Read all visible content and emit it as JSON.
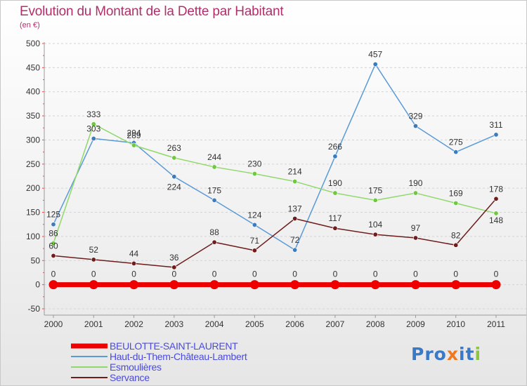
{
  "header": {
    "title": "Evolution du Montant de la Dette par Habitant",
    "subtitle": "(en €)"
  },
  "colors": {
    "title": "#b0306a",
    "axis_text": "#333333",
    "legend_text": "#4a4ae0",
    "grid": "#d4d4d4",
    "background_top": "#ffffff",
    "background_bottom": "#e6e6e6"
  },
  "legend": [
    {
      "label": "BEULOTTE-SAINT-LAURENT",
      "color": "#ee0000"
    },
    {
      "label": "Haut-du-Them-Château-Lambert",
      "color": "#5a9ad6"
    },
    {
      "label": "Esmoulières",
      "color": "#8fd86a"
    },
    {
      "label": "Servance",
      "color": "#6e1c1c"
    }
  ],
  "logo": {
    "text": "Proxiti",
    "letter_colors": [
      "#3a78c8",
      "#3a78c8",
      "#3a78c8",
      "#f07820",
      "#3a78c8",
      "#3a78c8",
      "#8cc63e"
    ]
  },
  "chart_data": {
    "type": "line",
    "title": "Evolution du Montant de la Dette par Habitant",
    "subtitle": "(en €)",
    "x": [
      "2000",
      "2001",
      "2002",
      "2003",
      "2004",
      "2005",
      "2006",
      "2007",
      "2008",
      "2009",
      "2010",
      "2011"
    ],
    "ylim": [
      -50,
      500
    ],
    "yticks": [
      -50,
      0,
      50,
      100,
      150,
      200,
      250,
      300,
      350,
      400,
      450,
      500
    ],
    "grid": "horizontal dashed",
    "legend_position": "bottom-left",
    "series": [
      {
        "name": "BEULOTTE-SAINT-LAURENT",
        "color": "#ee0000",
        "line_width": "thick",
        "values": [
          0,
          0,
          0,
          0,
          0,
          0,
          0,
          0,
          0,
          0,
          0,
          0
        ],
        "labels": [
          "0",
          "0",
          "0",
          "0",
          "0",
          "0",
          "0",
          "0",
          "0",
          "0",
          "0",
          "0"
        ]
      },
      {
        "name": "Haut-du-Them-Château-Lambert",
        "color": "#5a9ad6",
        "point_color": "#3a7cc0",
        "line_width": "thin",
        "values": [
          125,
          303,
          294,
          224,
          175,
          124,
          72,
          266,
          457,
          329,
          275,
          311
        ],
        "labels": [
          "125",
          "303",
          "294",
          "224",
          "175",
          "124",
          "72",
          "266",
          "457",
          "329",
          "275",
          "311"
        ]
      },
      {
        "name": "Esmoulières",
        "color": "#8fd86a",
        "point_color": "#6fc840",
        "line_width": "thin",
        "values": [
          86,
          333,
          289,
          263,
          244,
          230,
          214,
          190,
          175,
          190,
          169,
          148
        ],
        "labels": [
          "86",
          "333",
          "289",
          "263",
          "244",
          "230",
          "214",
          "190",
          "175",
          "190",
          "169",
          "148"
        ]
      },
      {
        "name": "Servance",
        "color": "#6e1c1c",
        "point_color": "#6e1c1c",
        "line_width": "thin",
        "values": [
          60,
          52,
          44,
          36,
          88,
          71,
          137,
          117,
          104,
          97,
          82,
          178
        ],
        "labels": [
          "60",
          "52",
          "44",
          "36",
          "88",
          "71",
          "137",
          "117",
          "104",
          "97",
          "82",
          "178"
        ]
      }
    ]
  }
}
